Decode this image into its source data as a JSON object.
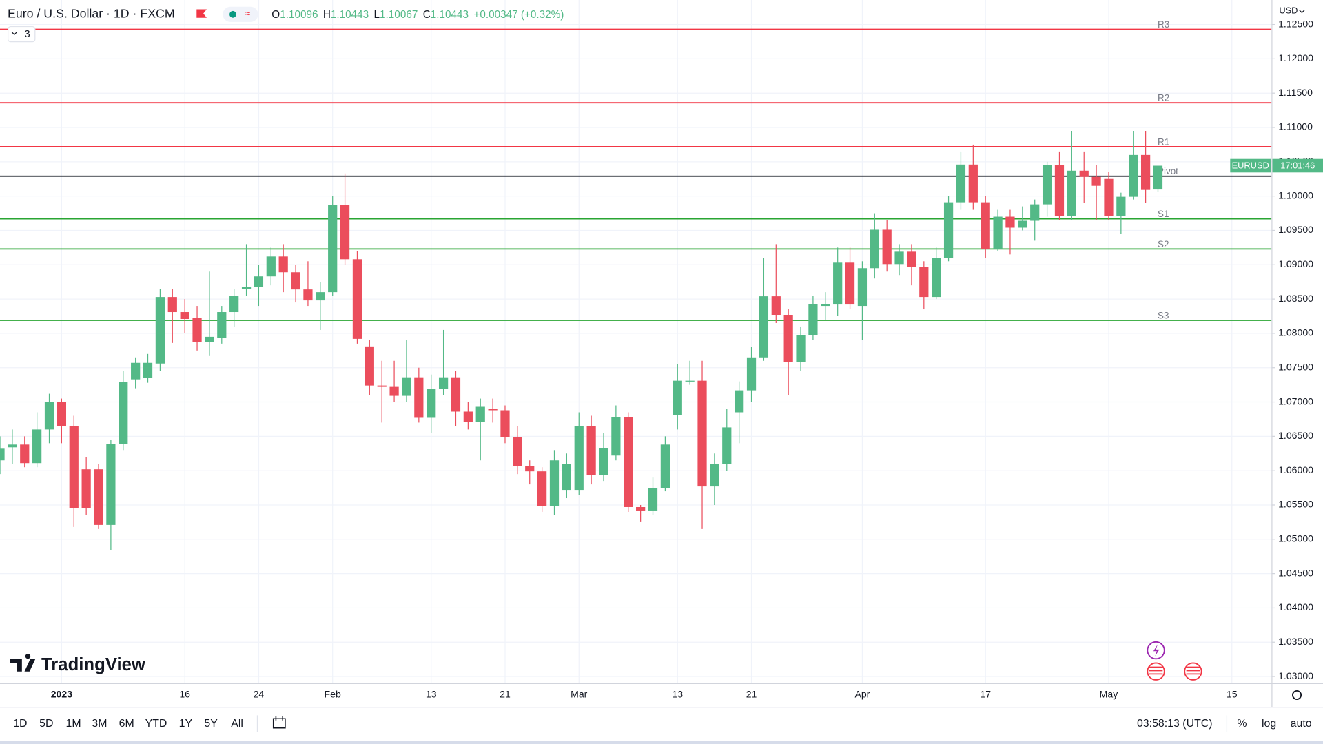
{
  "header": {
    "symbol": "Euro / U.S. Dollar · 1D · FXCM",
    "ohlc": [
      {
        "label": "O",
        "value": "1.10096"
      },
      {
        "label": "H",
        "value": "1.10443"
      },
      {
        "label": "L",
        "value": "1.10067"
      },
      {
        "label": "C",
        "value": "1.10443"
      }
    ],
    "change": "+0.00347 (+0.32%)",
    "indicators": "3"
  },
  "chart_data": {
    "type": "candlestick",
    "categories": [
      null,
      null,
      null,
      null,
      null,
      "2023",
      null,
      null,
      null,
      null,
      null,
      null,
      null,
      null,
      null,
      "16",
      null,
      null,
      null,
      null,
      null,
      "24",
      null,
      null,
      null,
      null,
      null,
      "Feb",
      null,
      null,
      null,
      null,
      null,
      null,
      null,
      "13",
      null,
      null,
      null,
      null,
      null,
      "21",
      null,
      null,
      null,
      null,
      null,
      "Mar",
      null,
      null,
      null,
      null,
      null,
      null,
      null,
      "13",
      null,
      null,
      null,
      null,
      null,
      "21",
      null,
      null,
      null,
      null,
      null,
      null,
      null,
      null,
      "Apr",
      null,
      null,
      null,
      null,
      null,
      null,
      null,
      null,
      null,
      "17",
      null,
      null,
      null,
      null,
      null,
      null,
      null,
      null,
      null,
      "May",
      null,
      null,
      null,
      null,
      null,
      null,
      null,
      null,
      null,
      "15",
      null,
      null,
      null
    ],
    "open": [
      1.0615,
      1.0634,
      1.0638,
      1.0611,
      1.066,
      1.07,
      1.0665,
      1.0602,
      1.0602,
      1.0521,
      1.0639,
      1.0733,
      1.0735,
      1.0756,
      1.0853,
      1.0831,
      1.0822,
      1.0787,
      1.0793,
      1.0831,
      1.0865,
      1.0868,
      1.0883,
      1.0912,
      1.0889,
      1.0864,
      1.0848,
      1.086,
      1.0987,
      1.0908,
      1.0781,
      1.0724,
      1.0722,
      1.0709,
      1.0736,
      1.0677,
      1.0719,
      1.0736,
      1.0686,
      1.0671,
      1.069,
      1.0688,
      1.0649,
      1.0607,
      1.0599,
      1.0548,
      1.0571,
      1.0571,
      1.0665,
      1.0594,
      1.0622,
      1.0678,
      1.0547,
      1.0541,
      1.0575,
      1.0681,
      1.073,
      1.0731,
      1.0577,
      1.061,
      1.0685,
      1.0717,
      1.0765,
      1.0854,
      1.0827,
      1.0758,
      1.0797,
      1.084,
      1.0842,
      1.0903,
      1.084,
      1.0895,
      1.0951,
      1.0901,
      1.0919,
      1.0897,
      1.0853,
      1.091,
      1.0991,
      1.1046,
      1.0991,
      1.0923,
      1.097,
      1.0954,
      1.0964,
      1.0988,
      1.1045,
      1.0971,
      1.1037,
      1.1028,
      1.1025,
      1.0971,
      1.0999,
      1.106,
      1.10096,
      null,
      null,
      null,
      null,
      null,
      null,
      null,
      null,
      null
    ],
    "high": [
      1.065,
      1.066,
      1.065,
      1.0685,
      1.0712,
      1.0705,
      1.068,
      1.062,
      1.061,
      1.0645,
      1.0745,
      1.0765,
      1.077,
      1.0865,
      1.0865,
      1.085,
      1.084,
      1.089,
      1.084,
      1.0865,
      1.093,
      1.09,
      1.0925,
      1.093,
      1.09,
      1.0905,
      1.0875,
      1.1,
      1.1033,
      1.092,
      1.079,
      1.076,
      1.076,
      1.079,
      1.075,
      1.074,
      1.0805,
      1.0745,
      1.07,
      1.0705,
      1.0705,
      1.0695,
      1.0665,
      1.0615,
      1.0605,
      1.063,
      1.0625,
      1.0685,
      1.068,
      1.0655,
      1.0695,
      1.0685,
      1.055,
      1.059,
      1.065,
      1.0755,
      1.076,
      1.076,
      1.0625,
      1.069,
      1.073,
      1.078,
      1.091,
      1.093,
      1.0835,
      1.081,
      1.0855,
      1.086,
      1.0925,
      1.0925,
      1.0905,
      1.0975,
      1.0965,
      1.093,
      1.093,
      1.0905,
      1.0925,
      1.1,
      1.1065,
      1.1075,
      1.1,
      1.098,
      1.098,
      1.0985,
      1.0995,
      1.105,
      1.1065,
      1.1095,
      1.1065,
      1.1045,
      1.1035,
      1.1005,
      1.1095,
      1.1095,
      1.10443,
      null,
      null,
      null,
      null,
      null,
      null,
      null,
      null,
      null
    ],
    "low": [
      1.0595,
      1.061,
      1.0605,
      1.0605,
      1.064,
      1.064,
      1.0518,
      1.0535,
      1.0515,
      1.0484,
      1.063,
      1.072,
      1.0728,
      1.0745,
      1.0786,
      1.08,
      1.0775,
      1.0767,
      1.0785,
      1.081,
      1.0855,
      1.084,
      1.087,
      1.086,
      1.0845,
      1.084,
      1.0805,
      1.0855,
      1.09,
      1.0785,
      1.071,
      1.067,
      1.07,
      1.07,
      1.067,
      1.0655,
      1.071,
      1.0665,
      1.066,
      1.0615,
      1.067,
      1.064,
      1.0595,
      1.058,
      1.054,
      1.0535,
      1.056,
      1.0565,
      1.058,
      1.0585,
      1.0615,
      1.054,
      1.0525,
      1.0535,
      1.057,
      1.066,
      1.0725,
      1.0515,
      1.055,
      1.06,
      1.064,
      1.07,
      1.076,
      1.0815,
      1.071,
      1.0745,
      1.079,
      1.082,
      1.0825,
      1.0835,
      1.079,
      1.088,
      1.089,
      1.0885,
      1.087,
      1.0835,
      1.085,
      1.0905,
      1.098,
      1.098,
      1.091,
      1.092,
      1.0915,
      1.095,
      1.0935,
      1.097,
      1.0965,
      1.0965,
      1.099,
      1.0965,
      1.0965,
      1.0945,
      1.0995,
      1.099,
      1.10067,
      null,
      null,
      null,
      null,
      null,
      null,
      null,
      null,
      null
    ],
    "close": [
      1.0632,
      1.0638,
      1.0611,
      1.066,
      1.07,
      1.0665,
      1.0545,
      1.0545,
      1.0521,
      1.0639,
      1.0729,
      1.0757,
      1.0757,
      1.0853,
      1.0831,
      1.0821,
      1.0787,
      1.0795,
      1.0831,
      1.0855,
      1.0868,
      1.0883,
      1.0912,
      1.0889,
      1.0864,
      1.0848,
      1.086,
      1.0987,
      1.0908,
      1.0792,
      1.0724,
      1.0722,
      1.0709,
      1.0736,
      1.0677,
      1.0719,
      1.0736,
      1.0686,
      1.0671,
      1.0693,
      1.0688,
      1.0649,
      1.0607,
      1.0599,
      1.0548,
      1.0615,
      1.061,
      1.0665,
      1.0594,
      1.0633,
      1.0678,
      1.0547,
      1.0541,
      1.0575,
      1.0638,
      1.0731,
      1.0731,
      1.0577,
      1.061,
      1.0663,
      1.0717,
      1.0765,
      1.0854,
      1.0827,
      1.0758,
      1.0797,
      1.0843,
      1.0843,
      1.0903,
      1.0842,
      1.0895,
      1.0951,
      1.0901,
      1.0919,
      1.0897,
      1.0853,
      1.091,
      1.0991,
      1.1046,
      1.0991,
      1.0923,
      1.097,
      1.0954,
      1.0964,
      1.0988,
      1.1045,
      1.0971,
      1.1037,
      1.1028,
      1.1015,
      1.0971,
      1.0999,
      1.106,
      1.1009,
      1.10443,
      null,
      null,
      null,
      null,
      null,
      null,
      null,
      null,
      null
    ],
    "up_color": "#53b987",
    "down_color": "#eb4d5c",
    "ylim": [
      1.02902,
      1.12857
    ],
    "yticks": [
      {
        "value": 1.03,
        "label": "1.03000"
      },
      {
        "value": 1.035,
        "label": "1.03500"
      },
      {
        "value": 1.04,
        "label": "1.04000"
      },
      {
        "value": 1.045,
        "label": "1.04500"
      },
      {
        "value": 1.05,
        "label": "1.05000"
      },
      {
        "value": 1.055,
        "label": "1.05500"
      },
      {
        "value": 1.06,
        "label": "1.06000"
      },
      {
        "value": 1.065,
        "label": "1.06500"
      },
      {
        "value": 1.07,
        "label": "1.07000"
      },
      {
        "value": 1.075,
        "label": "1.07500"
      },
      {
        "value": 1.08,
        "label": "1.08000"
      },
      {
        "value": 1.085,
        "label": "1.08500"
      },
      {
        "value": 1.09,
        "label": "1.09000"
      },
      {
        "value": 1.095,
        "label": "1.09500"
      },
      {
        "value": 1.1,
        "label": "1.10000"
      },
      {
        "value": 1.105,
        "label": "1.10500"
      },
      {
        "value": 1.11,
        "label": "1.11000"
      },
      {
        "value": 1.115,
        "label": "1.11500"
      },
      {
        "value": 1.12,
        "label": "1.12000"
      },
      {
        "value": 1.125,
        "label": "1.12500"
      }
    ],
    "grid": true,
    "price_axis_unit": "USD",
    "price_tag": {
      "symbol": "EURUSD",
      "countdown": "17:01:46"
    },
    "levels": [
      {
        "label": "R3",
        "value": 1.1243,
        "color": "#f23645"
      },
      {
        "label": "R2",
        "value": 1.1136,
        "color": "#f23645"
      },
      {
        "label": "R1",
        "value": 1.1072,
        "color": "#f23645"
      },
      {
        "label": "Pivot",
        "value": 1.1029,
        "color": "#131722"
      },
      {
        "label": "S1",
        "value": 1.0967,
        "color": "#2aa533"
      },
      {
        "label": "S2",
        "value": 1.0923,
        "color": "#2aa533"
      },
      {
        "label": "S3",
        "value": 1.0819,
        "color": "#2aa533"
      }
    ]
  },
  "branding": "TradingView",
  "toolbar": {
    "ranges": [
      "1D",
      "5D",
      "1M",
      "3M",
      "6M",
      "YTD",
      "1Y",
      "5Y",
      "All"
    ],
    "clock": "03:58:13 (UTC)",
    "options": [
      "%",
      "log",
      "auto"
    ]
  }
}
